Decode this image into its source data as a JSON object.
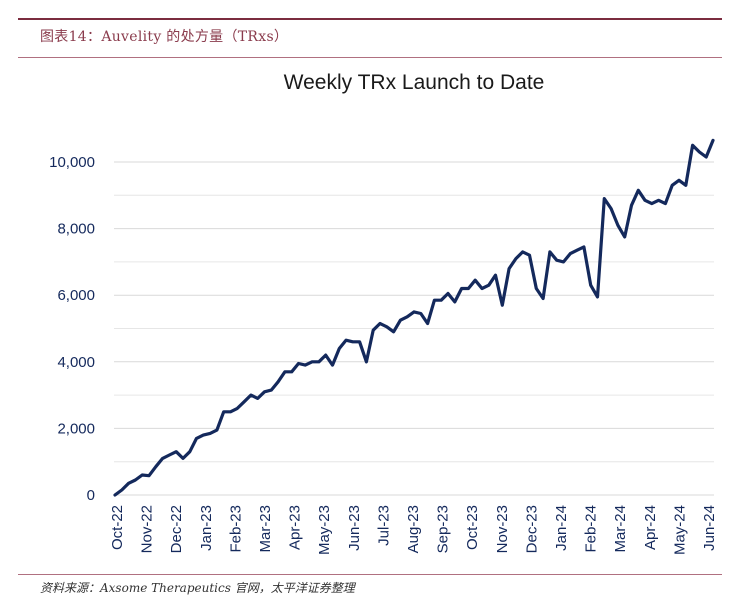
{
  "header": {
    "title": "图表14：Auvelity 的处方量（TRxs）"
  },
  "footer": {
    "source": "资料来源：Axsome Therapeutics 官网，太平洋证券整理"
  },
  "chart_data": {
    "type": "line",
    "title": "Weekly TRx Launch to Date",
    "xlabel": "",
    "ylabel": "",
    "ylim": [
      0,
      11000
    ],
    "yticks": [
      0,
      2000,
      4000,
      6000,
      8000,
      10000
    ],
    "ytick_labels": [
      "0",
      "2,000",
      "4,000",
      "6,000",
      "8,000",
      "10,000"
    ],
    "xtick_labels": [
      "Oct-22",
      "Nov-22",
      "Dec-22",
      "Jan-23",
      "Feb-23",
      "Mar-23",
      "Apr-23",
      "May-23",
      "Jun-23",
      "Jul-23",
      "Aug-23",
      "Sep-23",
      "Oct-23",
      "Nov-23",
      "Dec-23",
      "Jan-24",
      "Feb-24",
      "Mar-24",
      "Apr-24",
      "May-24",
      "Jun-24"
    ],
    "grid": true,
    "line_color": "#14295c",
    "series": [
      {
        "values": [
          0,
          150,
          350,
          450,
          600,
          580,
          850,
          1100,
          1200,
          1300,
          1100,
          1300,
          1700,
          1800,
          1850,
          1950,
          2500,
          2500,
          2600,
          2800,
          3000,
          2900,
          3100,
          3150,
          3400,
          3700,
          3700,
          3950,
          3900,
          4000,
          4000,
          4200,
          3900,
          4400,
          4650,
          4600,
          4600,
          4000,
          4950,
          5150,
          5050,
          4900,
          5250,
          5350,
          5500,
          5450,
          5150,
          5850,
          5850,
          6050,
          5800,
          6200,
          6200,
          6450,
          6200,
          6300,
          6600,
          5700,
          6800,
          7100,
          7300,
          7200,
          6200,
          5900,
          7300,
          7050,
          7000,
          7250,
          7350,
          7450,
          6300,
          5950,
          8900,
          8600,
          8100,
          7750,
          8700,
          9150,
          8850,
          8750,
          8850,
          8750,
          9300,
          9450,
          9300,
          10500,
          10300,
          10150,
          10650
        ]
      }
    ]
  }
}
